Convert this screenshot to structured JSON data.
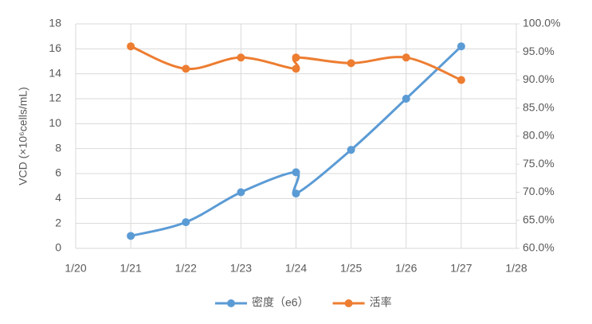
{
  "chart_data": {
    "type": "line",
    "y_label": "VCD (×10⁶cells/mL)",
    "x": [
      "1/21",
      "1/22",
      "1/23",
      "1/24",
      "1/24",
      "1/25",
      "1/26",
      "1/27"
    ],
    "xlim": [
      "1/20",
      "1/28"
    ],
    "xticks": [
      "1/20",
      "1/21",
      "1/22",
      "1/23",
      "1/24",
      "1/25",
      "1/26",
      "1/27",
      "1/28"
    ],
    "ylim": [
      0,
      18
    ],
    "yticks": [
      0,
      2,
      4,
      6,
      8,
      10,
      12,
      14,
      16,
      18
    ],
    "y2lim": [
      60,
      100
    ],
    "y2ticks": [
      {
        "value": 60,
        "label": "60.0%"
      },
      {
        "value": 65,
        "label": "65.0%"
      },
      {
        "value": 70,
        "label": "70.0%"
      },
      {
        "value": 75,
        "label": "75.0%"
      },
      {
        "value": 80,
        "label": "80.0%"
      },
      {
        "value": 85,
        "label": "85.0%"
      },
      {
        "value": 90,
        "label": "90.0%"
      },
      {
        "value": 95,
        "label": "95.0%"
      },
      {
        "value": 100,
        "label": "100.0%"
      }
    ],
    "grid": true,
    "smooth": true,
    "legend": "bottom",
    "series": [
      {
        "name": "密度（e6）",
        "color": "#5b9bd5",
        "values": [
          1.0,
          2.1,
          4.5,
          6.1,
          4.4,
          7.9,
          12.0,
          16.2
        ]
      },
      {
        "name": "活率",
        "color": "#ed7d31",
        "axis": "y2",
        "values": [
          96,
          92,
          94,
          92,
          94,
          93,
          94,
          90
        ]
      }
    ]
  }
}
